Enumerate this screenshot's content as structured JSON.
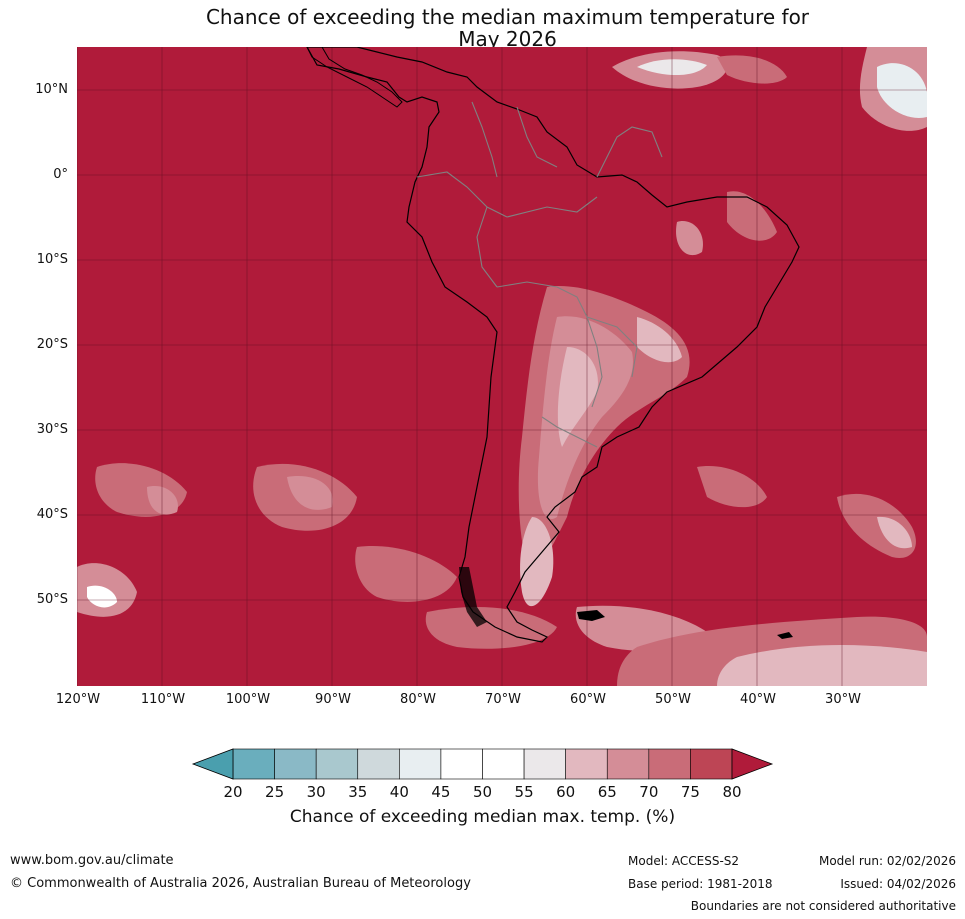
{
  "title": {
    "line1": "Chance of exceeding the median maximum temperature for",
    "line2": "May 2026"
  },
  "map": {
    "lat_ticks": [
      "10°N",
      "0°",
      "10°S",
      "20°S",
      "30°S",
      "40°S",
      "50°S"
    ],
    "lon_ticks": [
      "120°W",
      "110°W",
      "100°W",
      "90°W",
      "80°W",
      "70°W",
      "60°W",
      "50°W",
      "40°W",
      "30°W"
    ],
    "background_color": "#b01b3a",
    "gridline_color": "#5a0f20",
    "coastline_color": "#000000",
    "border_color": "#808080"
  },
  "colorbar": {
    "ticks": [
      "20",
      "25",
      "30",
      "35",
      "40",
      "45",
      "50",
      "55",
      "60",
      "65",
      "70",
      "75",
      "80"
    ],
    "below_color": "#4a9fae",
    "above_color": "#b01b3a",
    "colors": [
      "#6aaebd",
      "#8ab9c6",
      "#a9c8ce",
      "#cfd9dc",
      "#e8eef1",
      "#ffffff",
      "#ffffff",
      "#ebe8ea",
      "#e2b8bf",
      "#d48d97",
      "#c96c78",
      "#bd4555"
    ],
    "label": "Chance of exceeding median max. temp. (%)"
  },
  "footer": {
    "website": "www.bom.gov.au/climate",
    "copyright": "© Commonwealth of Australia 2026, Australian Bureau of Meteorology",
    "model": "Model: ACCESS-S2",
    "base_period": "Base period: 1981-2018",
    "model_run": "Model run: 02/02/2026",
    "issued": "Issued: 04/02/2026",
    "disclaimer": "Boundaries are not considered authoritative"
  }
}
